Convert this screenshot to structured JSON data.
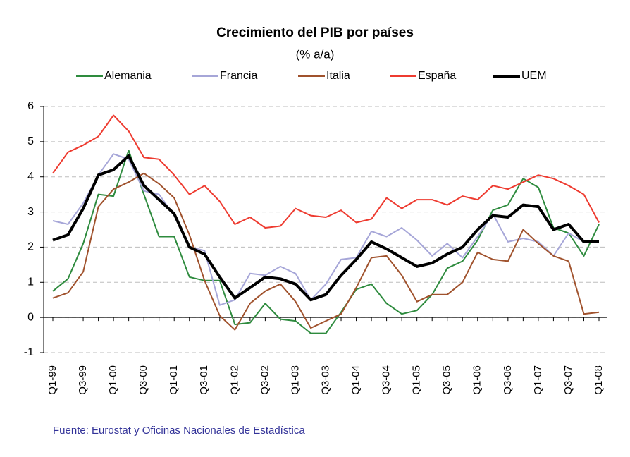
{
  "chart_data": {
    "type": "line",
    "title": "Crecimiento del PIB por países",
    "subtitle": "(% a/a)",
    "source": "Fuente: Eurostat y Oficinas Nacionales de Estadística",
    "categories": [
      "Q1-99",
      null,
      "Q3-99",
      null,
      "Q1-00",
      null,
      "Q3-00",
      null,
      "Q1-01",
      null,
      "Q3-01",
      null,
      "Q1-02",
      null,
      "Q3-02",
      null,
      "Q1-03",
      null,
      "Q3-03",
      null,
      "Q1-04",
      null,
      "Q3-04",
      null,
      "Q1-05",
      null,
      "Q3-05",
      null,
      "Q1-06",
      null,
      "Q3-06",
      null,
      "Q1-07",
      null,
      "Q3-07",
      null,
      "Q1-08"
    ],
    "ylim": [
      -1,
      6
    ],
    "yticks": [
      -1,
      0,
      1,
      2,
      3,
      4,
      5,
      6
    ],
    "grid": true,
    "legend": "top",
    "series": [
      {
        "name": "Alemania",
        "color": "#2e8b3e",
        "width": 2,
        "values": [
          0.75,
          1.1,
          2.1,
          3.5,
          3.45,
          4.75,
          3.5,
          2.3,
          2.3,
          1.15,
          1.05,
          1.05,
          -0.2,
          -0.15,
          0.4,
          -0.05,
          -0.1,
          -0.45,
          -0.45,
          0.15,
          0.8,
          0.95,
          0.4,
          0.1,
          0.2,
          0.65,
          1.4,
          1.6,
          2.2,
          3.05,
          3.2,
          3.95,
          3.7,
          2.55,
          2.4,
          1.75,
          2.65
        ]
      },
      {
        "name": "Francia",
        "color": "#a6a6d8",
        "width": 2,
        "values": [
          2.75,
          2.65,
          3.25,
          4.05,
          4.65,
          4.5,
          3.6,
          3.5,
          2.9,
          2.0,
          1.9,
          0.35,
          0.5,
          1.25,
          1.2,
          1.45,
          1.25,
          0.5,
          0.95,
          1.65,
          1.7,
          2.45,
          2.3,
          2.55,
          2.2,
          1.75,
          2.1,
          1.7,
          2.3,
          2.95,
          2.15,
          2.25,
          2.15,
          1.75,
          2.4,
          2.15,
          2.15
        ]
      },
      {
        "name": "Italia",
        "color": "#a0522d",
        "width": 2,
        "values": [
          0.55,
          0.7,
          1.3,
          3.15,
          3.65,
          3.85,
          4.1,
          3.8,
          3.4,
          2.35,
          1.05,
          0.05,
          -0.35,
          0.4,
          0.75,
          0.95,
          0.45,
          -0.3,
          -0.1,
          0.1,
          0.85,
          1.7,
          1.75,
          1.2,
          0.45,
          0.65,
          0.65,
          1.0,
          1.85,
          1.65,
          1.6,
          2.5,
          2.1,
          1.75,
          1.6,
          0.1,
          0.15
        ]
      },
      {
        "name": "España",
        "color": "#ee3b30",
        "width": 2,
        "values": [
          4.1,
          4.7,
          4.9,
          5.15,
          5.75,
          5.3,
          4.55,
          4.5,
          4.05,
          3.5,
          3.75,
          3.3,
          2.65,
          2.85,
          2.55,
          2.6,
          3.1,
          2.9,
          2.85,
          3.05,
          2.7,
          2.8,
          3.4,
          3.1,
          3.35,
          3.35,
          3.2,
          3.45,
          3.35,
          3.75,
          3.65,
          3.85,
          4.05,
          3.95,
          3.75,
          3.5,
          2.7
        ]
      },
      {
        "name": "UEM",
        "color": "#000000",
        "width": 4,
        "values": [
          2.2,
          2.35,
          3.1,
          4.05,
          4.2,
          4.6,
          3.75,
          3.35,
          2.95,
          2.0,
          1.8,
          1.15,
          0.55,
          0.85,
          1.15,
          1.1,
          0.95,
          0.5,
          0.65,
          1.2,
          1.65,
          2.15,
          1.95,
          1.7,
          1.45,
          1.55,
          1.8,
          2.0,
          2.5,
          2.9,
          2.85,
          3.2,
          3.15,
          2.5,
          2.65,
          2.15,
          2.15
        ]
      }
    ]
  }
}
